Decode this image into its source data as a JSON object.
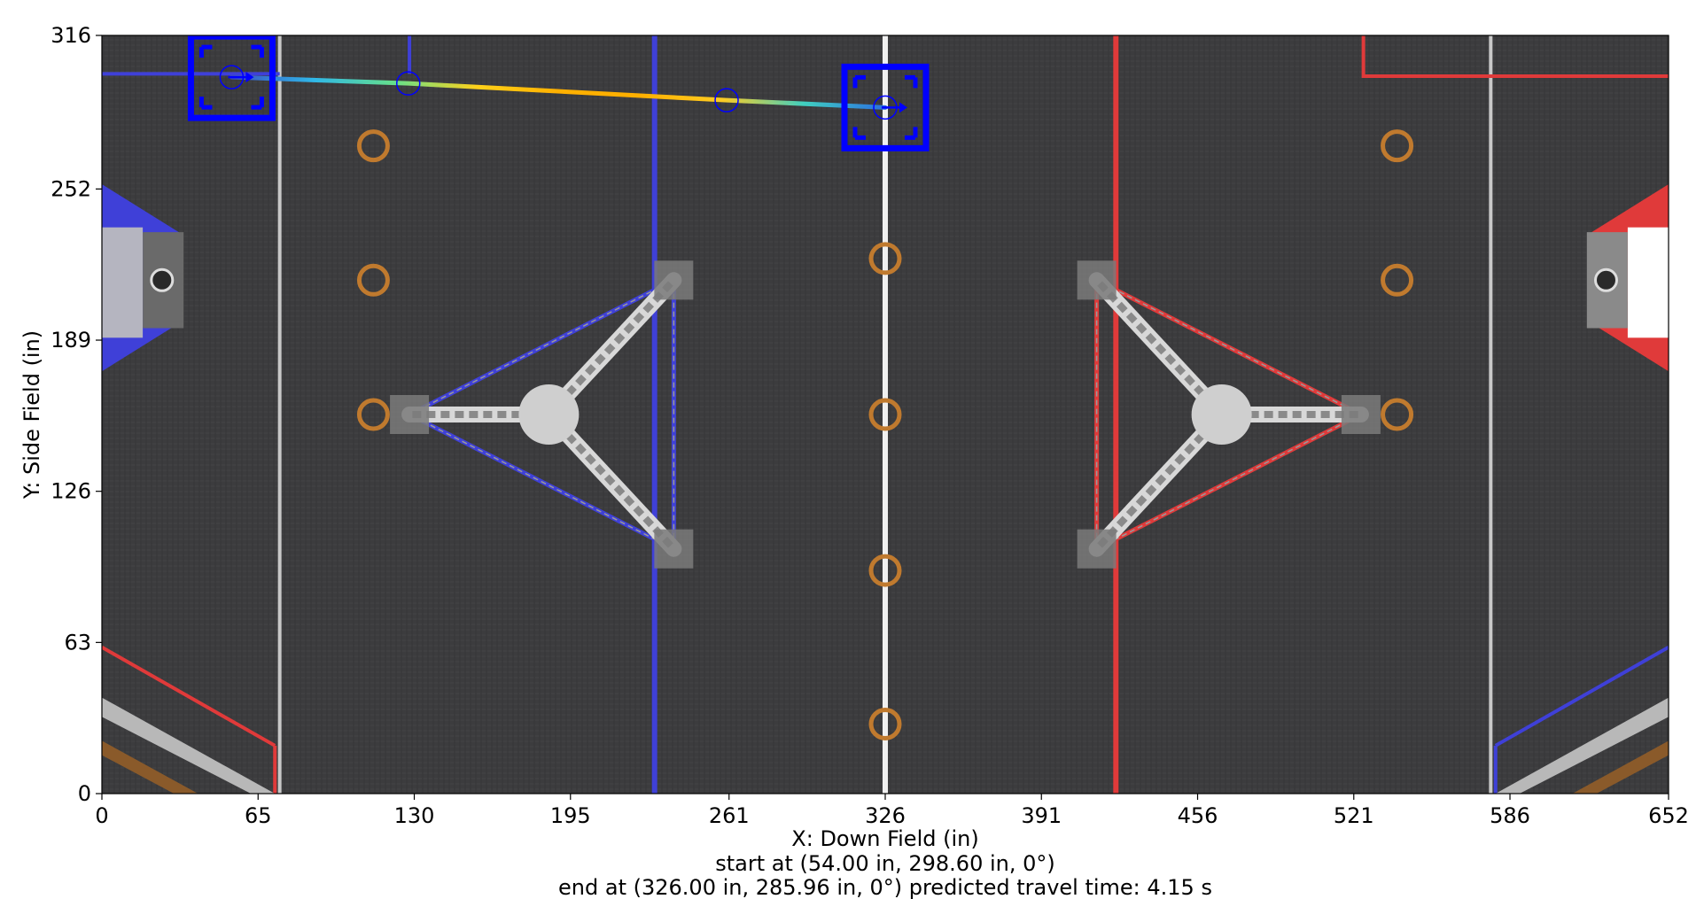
{
  "chart_data": {
    "type": "scatter",
    "title": "",
    "xlabel": "X: Down Field (in)",
    "ylabel": "Y: Side Field (in)",
    "xlim": [
      0,
      652
    ],
    "ylim": [
      0,
      316
    ],
    "x_ticks": [
      "0",
      "65",
      "130",
      "195",
      "261",
      "326",
      "391",
      "456",
      "521",
      "586",
      "652"
    ],
    "y_ticks": [
      "0",
      "63",
      "126",
      "189",
      "252",
      "316"
    ],
    "caption_start": "start at (54.00 in, 298.60 in, 0°)",
    "caption_end": "end at (326.00 in, 285.96 in, 0°) predicted travel time: 4.15 s",
    "path": {
      "x": [
        54.0,
        127.5,
        260.0,
        326.0
      ],
      "y": [
        298.6,
        296.0,
        289.0,
        285.96
      ],
      "colormap": [
        "#3b4cc0",
        "#2fb7e8",
        "#66e08a",
        "#ffd11a",
        "#ffb000",
        "#ffb000",
        "#ffcc22",
        "#40d0c0",
        "#2a6fe0"
      ]
    },
    "waypoints": [
      {
        "x": 54.0,
        "y": 298.6
      },
      {
        "x": 127.5,
        "y": 296.0
      },
      {
        "x": 260.0,
        "y": 289.0
      },
      {
        "x": 326.0,
        "y": 285.96
      }
    ],
    "robots": [
      {
        "x": 54.0,
        "y": 298.6,
        "heading_deg": 0
      },
      {
        "x": 326.0,
        "y": 285.96,
        "heading_deg": 0
      }
    ],
    "colors": {
      "field": "#3c3c3e",
      "blue_alliance": "#3f40d8",
      "red_alliance": "#e03a3a",
      "robot": "#0000ff",
      "ring": "#c07a2e",
      "center_line": "#f0f0f0"
    },
    "rings": [
      {
        "x": 113,
        "y": 270
      },
      {
        "x": 113,
        "y": 214
      },
      {
        "x": 113,
        "y": 158
      },
      {
        "x": 326,
        "y": 223
      },
      {
        "x": 326,
        "y": 158
      },
      {
        "x": 326,
        "y": 93
      },
      {
        "x": 326,
        "y": 29
      },
      {
        "x": 539,
        "y": 270
      },
      {
        "x": 539,
        "y": 214
      },
      {
        "x": 539,
        "y": 158
      }
    ]
  }
}
